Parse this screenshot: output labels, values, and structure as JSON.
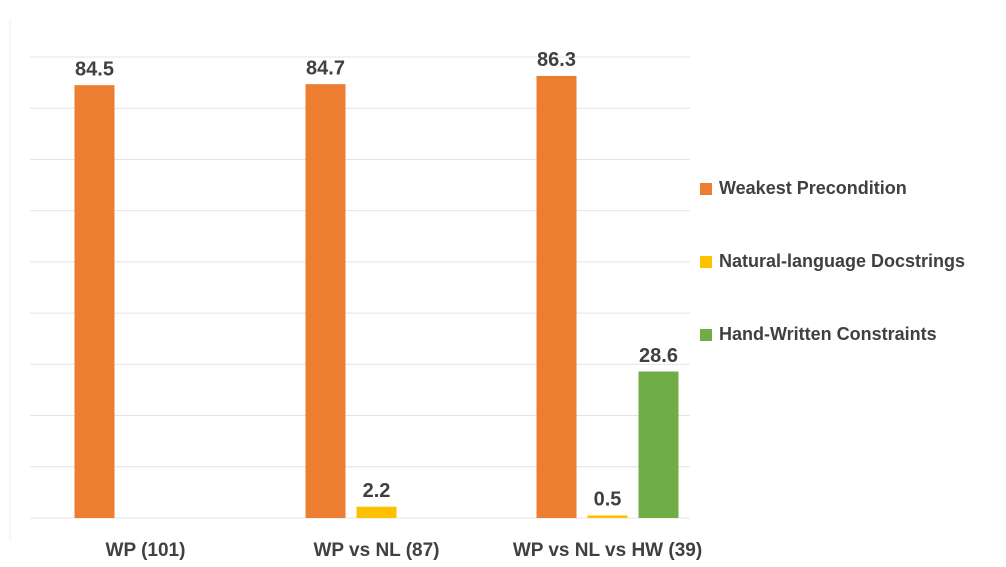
{
  "chart_data": {
    "type": "bar",
    "categories": [
      "WP (101)",
      "WP vs NL (87)",
      "WP vs NL vs HW (39)"
    ],
    "series": [
      {
        "name": "Weakest Precondition",
        "color": "#ed7d31",
        "values": [
          84.5,
          84.7,
          86.3
        ]
      },
      {
        "name": "Natural-language Docstrings",
        "color": "#ffc000",
        "values": [
          null,
          2.2,
          0.5
        ]
      },
      {
        "name": "Hand-Written Constraints",
        "color": "#70ad47",
        "values": [
          null,
          null,
          28.6
        ]
      }
    ],
    "ylim": [
      0,
      90
    ],
    "yticks": [
      0,
      10,
      20,
      30,
      40,
      50,
      60,
      70,
      80,
      90
    ],
    "grid": true,
    "legend": "right"
  }
}
